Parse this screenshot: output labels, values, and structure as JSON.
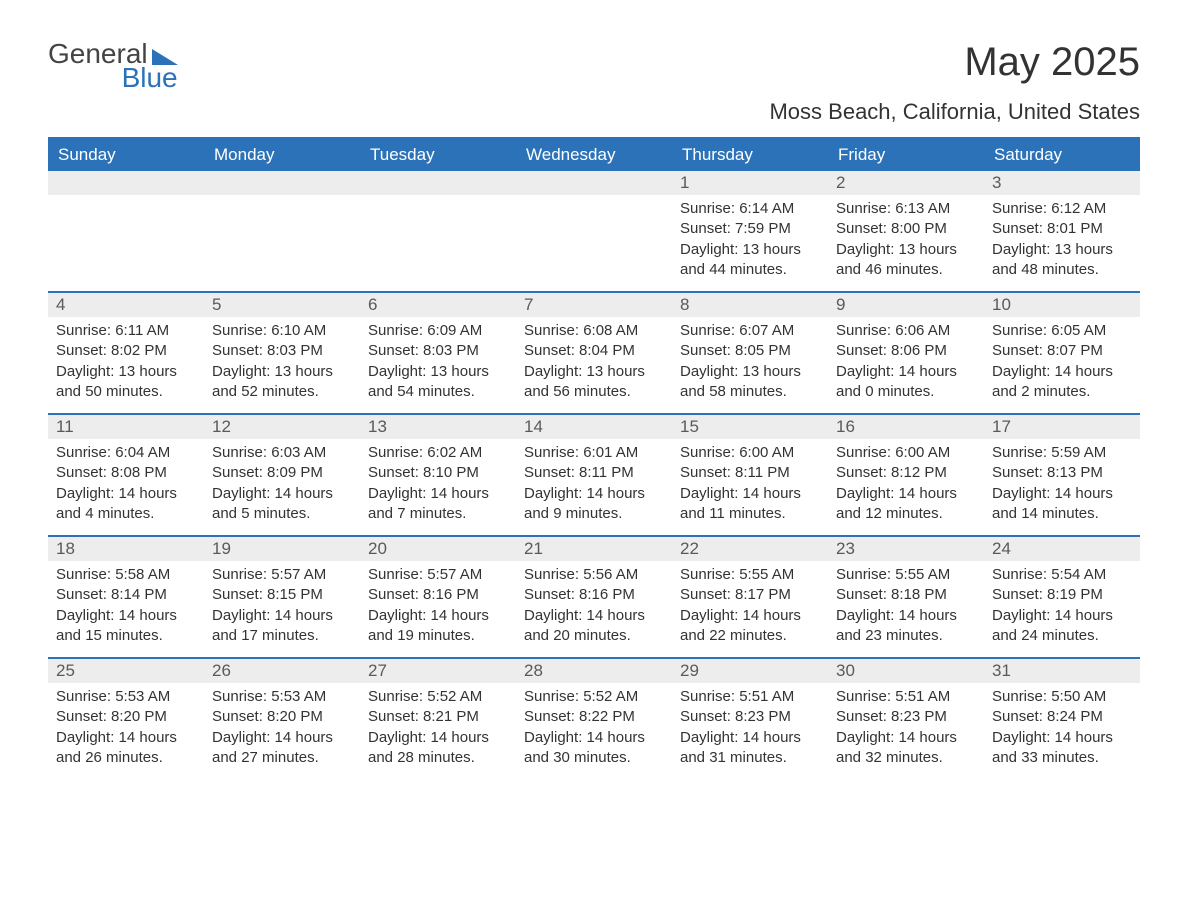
{
  "logo": {
    "word1": "General",
    "word2": "Blue"
  },
  "title": "May 2025",
  "location": "Moss Beach, California, United States",
  "colors": {
    "accent": "#2b72b8",
    "header_bg": "#2b72b8",
    "header_text": "#ffffff",
    "daynum_bg": "#ededed",
    "daynum_text": "#5a5a5a",
    "body_text": "#333333",
    "page_bg": "#ffffff"
  },
  "day_names": [
    "Sunday",
    "Monday",
    "Tuesday",
    "Wednesday",
    "Thursday",
    "Friday",
    "Saturday"
  ],
  "weeks": [
    [
      {
        "blank": true
      },
      {
        "blank": true
      },
      {
        "blank": true
      },
      {
        "blank": true
      },
      {
        "n": "1",
        "sr": "6:14 AM",
        "ss": "7:59 PM",
        "dh": "13",
        "dm": "44"
      },
      {
        "n": "2",
        "sr": "6:13 AM",
        "ss": "8:00 PM",
        "dh": "13",
        "dm": "46"
      },
      {
        "n": "3",
        "sr": "6:12 AM",
        "ss": "8:01 PM",
        "dh": "13",
        "dm": "48"
      }
    ],
    [
      {
        "n": "4",
        "sr": "6:11 AM",
        "ss": "8:02 PM",
        "dh": "13",
        "dm": "50"
      },
      {
        "n": "5",
        "sr": "6:10 AM",
        "ss": "8:03 PM",
        "dh": "13",
        "dm": "52"
      },
      {
        "n": "6",
        "sr": "6:09 AM",
        "ss": "8:03 PM",
        "dh": "13",
        "dm": "54"
      },
      {
        "n": "7",
        "sr": "6:08 AM",
        "ss": "8:04 PM",
        "dh": "13",
        "dm": "56"
      },
      {
        "n": "8",
        "sr": "6:07 AM",
        "ss": "8:05 PM",
        "dh": "13",
        "dm": "58"
      },
      {
        "n": "9",
        "sr": "6:06 AM",
        "ss": "8:06 PM",
        "dh": "14",
        "dm": "0"
      },
      {
        "n": "10",
        "sr": "6:05 AM",
        "ss": "8:07 PM",
        "dh": "14",
        "dm": "2"
      }
    ],
    [
      {
        "n": "11",
        "sr": "6:04 AM",
        "ss": "8:08 PM",
        "dh": "14",
        "dm": "4"
      },
      {
        "n": "12",
        "sr": "6:03 AM",
        "ss": "8:09 PM",
        "dh": "14",
        "dm": "5"
      },
      {
        "n": "13",
        "sr": "6:02 AM",
        "ss": "8:10 PM",
        "dh": "14",
        "dm": "7"
      },
      {
        "n": "14",
        "sr": "6:01 AM",
        "ss": "8:11 PM",
        "dh": "14",
        "dm": "9"
      },
      {
        "n": "15",
        "sr": "6:00 AM",
        "ss": "8:11 PM",
        "dh": "14",
        "dm": "11"
      },
      {
        "n": "16",
        "sr": "6:00 AM",
        "ss": "8:12 PM",
        "dh": "14",
        "dm": "12"
      },
      {
        "n": "17",
        "sr": "5:59 AM",
        "ss": "8:13 PM",
        "dh": "14",
        "dm": "14"
      }
    ],
    [
      {
        "n": "18",
        "sr": "5:58 AM",
        "ss": "8:14 PM",
        "dh": "14",
        "dm": "15"
      },
      {
        "n": "19",
        "sr": "5:57 AM",
        "ss": "8:15 PM",
        "dh": "14",
        "dm": "17"
      },
      {
        "n": "20",
        "sr": "5:57 AM",
        "ss": "8:16 PM",
        "dh": "14",
        "dm": "19"
      },
      {
        "n": "21",
        "sr": "5:56 AM",
        "ss": "8:16 PM",
        "dh": "14",
        "dm": "20"
      },
      {
        "n": "22",
        "sr": "5:55 AM",
        "ss": "8:17 PM",
        "dh": "14",
        "dm": "22"
      },
      {
        "n": "23",
        "sr": "5:55 AM",
        "ss": "8:18 PM",
        "dh": "14",
        "dm": "23"
      },
      {
        "n": "24",
        "sr": "5:54 AM",
        "ss": "8:19 PM",
        "dh": "14",
        "dm": "24"
      }
    ],
    [
      {
        "n": "25",
        "sr": "5:53 AM",
        "ss": "8:20 PM",
        "dh": "14",
        "dm": "26"
      },
      {
        "n": "26",
        "sr": "5:53 AM",
        "ss": "8:20 PM",
        "dh": "14",
        "dm": "27"
      },
      {
        "n": "27",
        "sr": "5:52 AM",
        "ss": "8:21 PM",
        "dh": "14",
        "dm": "28"
      },
      {
        "n": "28",
        "sr": "5:52 AM",
        "ss": "8:22 PM",
        "dh": "14",
        "dm": "30"
      },
      {
        "n": "29",
        "sr": "5:51 AM",
        "ss": "8:23 PM",
        "dh": "14",
        "dm": "31"
      },
      {
        "n": "30",
        "sr": "5:51 AM",
        "ss": "8:23 PM",
        "dh": "14",
        "dm": "32"
      },
      {
        "n": "31",
        "sr": "5:50 AM",
        "ss": "8:24 PM",
        "dh": "14",
        "dm": "33"
      }
    ]
  ],
  "labels": {
    "sunrise": "Sunrise: ",
    "sunset": "Sunset: ",
    "daylight_prefix": "Daylight: ",
    "hours_word": " hours",
    "and_word": "and ",
    "minutes_word": " minutes."
  }
}
